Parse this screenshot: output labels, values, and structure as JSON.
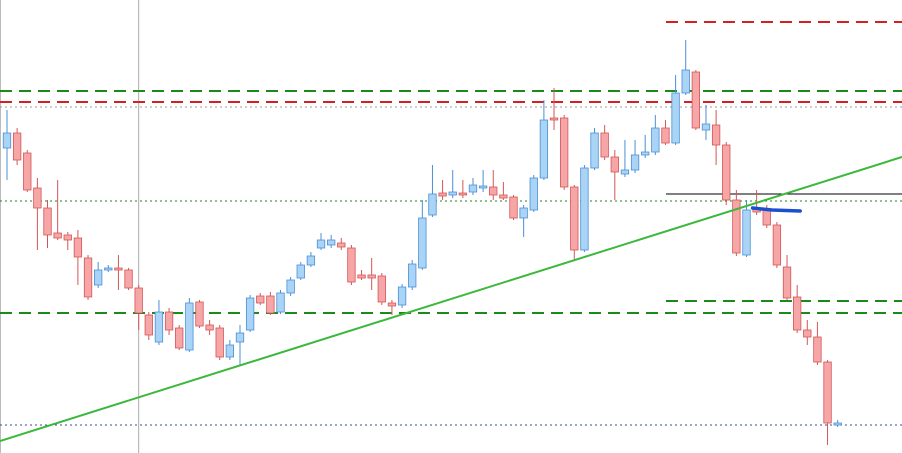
{
  "chart_data": {
    "type": "candlestick",
    "xlim": [
      -0.69,
      88.35
    ],
    "ylim": [
      0,
      453
    ],
    "up_color": "#aad4f6",
    "up_edge": "#4a8fd6",
    "down_color": "#f6a6a6",
    "down_edge": "#d45555",
    "open": [
      305,
      320,
      300,
      265,
      245,
      220,
      218,
      215,
      195,
      168,
      183,
      185,
      183,
      165,
      138,
      111,
      141,
      125,
      103,
      151,
      128,
      125,
      96,
      111,
      123,
      157,
      157,
      141,
      160,
      175,
      188,
      205,
      208,
      210,
      205,
      178,
      178,
      177,
      150,
      148,
      166,
      185,
      238,
      260,
      258,
      260,
      261,
      265,
      266,
      258,
      256,
      235,
      243,
      275,
      335,
      335,
      266,
      203,
      285,
      320,
      296,
      279,
      283,
      298,
      301,
      325,
      310,
      360,
      381,
      323,
      328,
      308,
      253,
      198,
      245,
      243,
      228,
      186,
      156,
      123,
      116,
      91,
      28
    ],
    "high": [
      343,
      325,
      303,
      275,
      253,
      273,
      221,
      223,
      198,
      191,
      188,
      198,
      185,
      168,
      141,
      153,
      145,
      128,
      155,
      153,
      133,
      128,
      113,
      128,
      158,
      160,
      161,
      163,
      176,
      191,
      201,
      220,
      218,
      215,
      208,
      183,
      195,
      180,
      153,
      169,
      193,
      253,
      288,
      273,
      283,
      273,
      275,
      283,
      283,
      271,
      258,
      248,
      278,
      353,
      365,
      338,
      268,
      288,
      325,
      328,
      303,
      313,
      313,
      318,
      338,
      333,
      378,
      413,
      383,
      348,
      343,
      311,
      263,
      253,
      263,
      248,
      231,
      198,
      168,
      133,
      131,
      93,
      33
    ],
    "low": [
      273,
      288,
      261,
      203,
      205,
      213,
      203,
      168,
      153,
      165,
      181,
      163,
      163,
      123,
      113,
      108,
      118,
      103,
      101,
      125,
      118,
      93,
      93,
      88,
      121,
      148,
      138,
      139,
      157,
      173,
      186,
      203,
      205,
      203,
      168,
      173,
      163,
      148,
      138,
      145,
      163,
      183,
      236,
      253,
      255,
      255,
      258,
      261,
      253,
      253,
      233,
      216,
      241,
      273,
      323,
      263,
      193,
      201,
      283,
      293,
      253,
      276,
      280,
      295,
      298,
      308,
      308,
      358,
      323,
      313,
      288,
      248,
      197,
      196,
      238,
      225,
      185,
      153,
      120,
      108,
      88,
      8,
      26
    ],
    "close": [
      320,
      293,
      263,
      245,
      218,
      215,
      213,
      196,
      156,
      183,
      185,
      183,
      165,
      140,
      118,
      141,
      123,
      105,
      150,
      127,
      123,
      96,
      108,
      120,
      155,
      150,
      140,
      160,
      173,
      188,
      197,
      213,
      213,
      206,
      171,
      175,
      175,
      151,
      147,
      166,
      189,
      235,
      259,
      257,
      261,
      258,
      268,
      267,
      258,
      255,
      235,
      245,
      275,
      333,
      333,
      266,
      203,
      285,
      320,
      296,
      281,
      283,
      298,
      301,
      325,
      310,
      360,
      383,
      325,
      329,
      308,
      253,
      200,
      243,
      241,
      228,
      188,
      155,
      123,
      116,
      91,
      30,
      30
    ],
    "levels": [
      {
        "value": 362,
        "color": "#1a8a1a",
        "style": "dash",
        "start": -0.69
      },
      {
        "value": 351,
        "color": "#d42020",
        "style": "dash",
        "start": -0.69
      },
      {
        "value": 346,
        "color": "#999999",
        "style": "dot",
        "start": -0.69
      },
      {
        "value": 252,
        "color": "#1a8a1a",
        "style": "dot",
        "start": -0.69
      },
      {
        "value": 140,
        "color": "#1a8a1a",
        "style": "dash",
        "start": -0.69
      },
      {
        "value": 28,
        "color": "#3a4aa0",
        "style": "dot",
        "start": -0.69
      },
      {
        "value": 431,
        "color": "#d42020",
        "style": "dash",
        "start": 65.05
      },
      {
        "value": 152,
        "color": "#1a8a1a",
        "style": "dash",
        "start": 65.05
      },
      {
        "value": 259,
        "color": "#000000",
        "style": "solid",
        "start": 65.05
      }
    ],
    "trendline": {
      "x": [
        -0.69,
        88.35
      ],
      "y": [
        12,
        296
      ],
      "color": "#3cb83c"
    },
    "marker_line": {
      "x": [
        73.6,
        75.5,
        78.3
      ],
      "y": [
        245,
        243,
        242
      ],
      "color": "#1a4fd0"
    },
    "vline": {
      "x": 13,
      "color": "#aaaaaa"
    }
  }
}
